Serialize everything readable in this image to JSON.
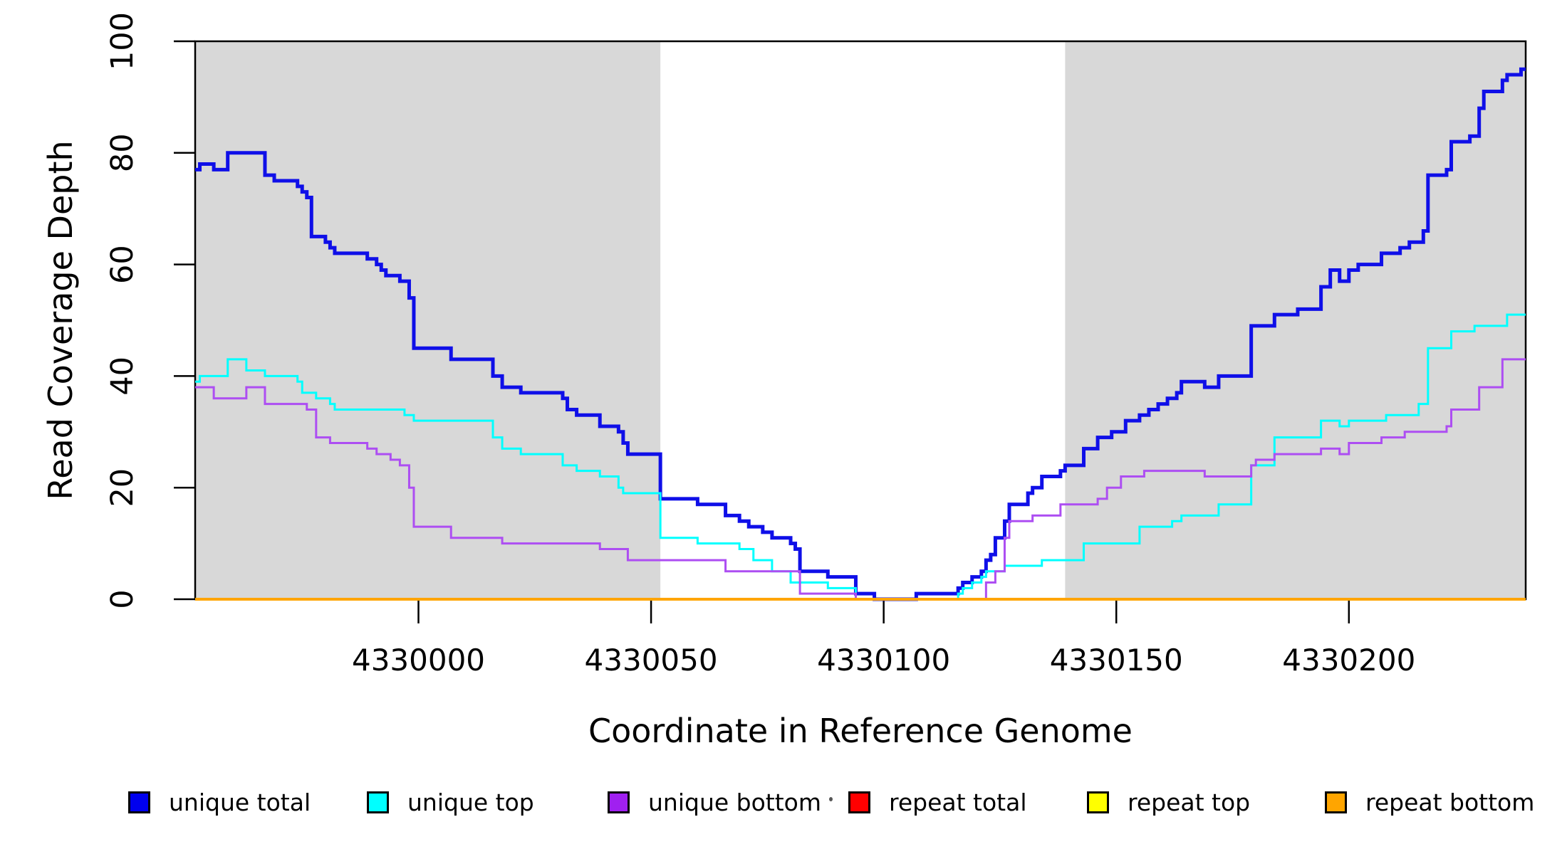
{
  "chart_data": {
    "type": "line",
    "subtype": "step",
    "title": "",
    "xlabel": "Coordinate in Reference Genome",
    "ylabel": "Read Coverage Depth",
    "xlim": [
      4329952,
      4330238
    ],
    "ylim": [
      0,
      100
    ],
    "x_ticks": [
      4330000,
      4330050,
      4330100,
      4330150,
      4330200
    ],
    "y_ticks": [
      0,
      20,
      40,
      60,
      80,
      100
    ],
    "grid": false,
    "legend_position": "bottom",
    "plot_background": "#ffffff",
    "shaded_bands": [
      {
        "from": 4329952,
        "to": 4330052,
        "color": "#d8d8d8"
      },
      {
        "from": 4330139,
        "to": 4330238,
        "color": "#d8d8d8"
      }
    ],
    "series": [
      {
        "name": "unique total",
        "color": "#0f0fe8",
        "line_width": 5,
        "points": [
          [
            4329952,
            77
          ],
          [
            4329953,
            78
          ],
          [
            4329956,
            77
          ],
          [
            4329959,
            80
          ],
          [
            4329967,
            76
          ],
          [
            4329969,
            75
          ],
          [
            4329974,
            74
          ],
          [
            4329975,
            73
          ],
          [
            4329976,
            72
          ],
          [
            4329977,
            65
          ],
          [
            4329980,
            64
          ],
          [
            4329981,
            63
          ],
          [
            4329982,
            62
          ],
          [
            4329989,
            61
          ],
          [
            4329991,
            60
          ],
          [
            4329992,
            59
          ],
          [
            4329993,
            58
          ],
          [
            4329996,
            57
          ],
          [
            4329998,
            54
          ],
          [
            4329999,
            45
          ],
          [
            4330007,
            43
          ],
          [
            4330016,
            40
          ],
          [
            4330018,
            38
          ],
          [
            4330022,
            37
          ],
          [
            4330031,
            36
          ],
          [
            4330032,
            34
          ],
          [
            4330034,
            33
          ],
          [
            4330039,
            31
          ],
          [
            4330043,
            30
          ],
          [
            4330044,
            28
          ],
          [
            4330045,
            26
          ],
          [
            4330052,
            18
          ],
          [
            4330060,
            17
          ],
          [
            4330066,
            15
          ],
          [
            4330069,
            14
          ],
          [
            4330071,
            13
          ],
          [
            4330074,
            12
          ],
          [
            4330076,
            11
          ],
          [
            4330080,
            10
          ],
          [
            4330081,
            9
          ],
          [
            4330082,
            5
          ],
          [
            4330088,
            4
          ],
          [
            4330094,
            1
          ],
          [
            4330098,
            0
          ],
          [
            4330107,
            1
          ],
          [
            4330116,
            2
          ],
          [
            4330117,
            3
          ],
          [
            4330119,
            4
          ],
          [
            4330121,
            5
          ],
          [
            4330122,
            7
          ],
          [
            4330123,
            8
          ],
          [
            4330124,
            11
          ],
          [
            4330126,
            14
          ],
          [
            4330127,
            17
          ],
          [
            4330131,
            19
          ],
          [
            4330132,
            20
          ],
          [
            4330134,
            22
          ],
          [
            4330138,
            23
          ],
          [
            4330139,
            24
          ],
          [
            4330143,
            27
          ],
          [
            4330146,
            29
          ],
          [
            4330149,
            30
          ],
          [
            4330152,
            32
          ],
          [
            4330155,
            33
          ],
          [
            4330157,
            34
          ],
          [
            4330159,
            35
          ],
          [
            4330161,
            36
          ],
          [
            4330163,
            37
          ],
          [
            4330164,
            39
          ],
          [
            4330169,
            38
          ],
          [
            4330172,
            40
          ],
          [
            4330179,
            49
          ],
          [
            4330184,
            51
          ],
          [
            4330189,
            52
          ],
          [
            4330194,
            56
          ],
          [
            4330196,
            59
          ],
          [
            4330198,
            57
          ],
          [
            4330200,
            59
          ],
          [
            4330202,
            60
          ],
          [
            4330207,
            62
          ],
          [
            4330211,
            63
          ],
          [
            4330213,
            64
          ],
          [
            4330216,
            66
          ],
          [
            4330217,
            76
          ],
          [
            4330221,
            77
          ],
          [
            4330222,
            82
          ],
          [
            4330226,
            83
          ],
          [
            4330228,
            88
          ],
          [
            4330229,
            91
          ],
          [
            4330233,
            93
          ],
          [
            4330234,
            94
          ],
          [
            4330237,
            95
          ]
        ]
      },
      {
        "name": "unique top",
        "color": "#00ffff",
        "line_width": 3,
        "points": [
          [
            4329952,
            39
          ],
          [
            4329953,
            40
          ],
          [
            4329959,
            43
          ],
          [
            4329963,
            41
          ],
          [
            4329967,
            40
          ],
          [
            4329974,
            39
          ],
          [
            4329975,
            37
          ],
          [
            4329978,
            36
          ],
          [
            4329981,
            35
          ],
          [
            4329982,
            34
          ],
          [
            4329997,
            33
          ],
          [
            4329999,
            32
          ],
          [
            4330016,
            29
          ],
          [
            4330018,
            27
          ],
          [
            4330022,
            26
          ],
          [
            4330031,
            24
          ],
          [
            4330034,
            23
          ],
          [
            4330039,
            22
          ],
          [
            4330043,
            20
          ],
          [
            4330044,
            19
          ],
          [
            4330052,
            11
          ],
          [
            4330060,
            10
          ],
          [
            4330069,
            9
          ],
          [
            4330072,
            7
          ],
          [
            4330076,
            5
          ],
          [
            4330080,
            3
          ],
          [
            4330088,
            2
          ],
          [
            4330094,
            0
          ],
          [
            4330116,
            1
          ],
          [
            4330117,
            2
          ],
          [
            4330119,
            3
          ],
          [
            4330121,
            4
          ],
          [
            4330122,
            5
          ],
          [
            4330126,
            6
          ],
          [
            4330134,
            7
          ],
          [
            4330143,
            10
          ],
          [
            4330155,
            13
          ],
          [
            4330162,
            14
          ],
          [
            4330164,
            15
          ],
          [
            4330172,
            17
          ],
          [
            4330179,
            24
          ],
          [
            4330184,
            29
          ],
          [
            4330194,
            32
          ],
          [
            4330198,
            31
          ],
          [
            4330200,
            32
          ],
          [
            4330208,
            33
          ],
          [
            4330215,
            35
          ],
          [
            4330217,
            45
          ],
          [
            4330222,
            48
          ],
          [
            4330227,
            49
          ],
          [
            4330234,
            51
          ]
        ]
      },
      {
        "name": "unique bottom",
        "color": "#ad4ef2",
        "line_width": 3,
        "points": [
          [
            4329952,
            38
          ],
          [
            4329956,
            36
          ],
          [
            4329963,
            38
          ],
          [
            4329967,
            35
          ],
          [
            4329976,
            34
          ],
          [
            4329978,
            29
          ],
          [
            4329981,
            28
          ],
          [
            4329989,
            27
          ],
          [
            4329991,
            26
          ],
          [
            4329994,
            25
          ],
          [
            4329996,
            24
          ],
          [
            4329998,
            20
          ],
          [
            4329999,
            13
          ],
          [
            4330007,
            11
          ],
          [
            4330018,
            10
          ],
          [
            4330039,
            9
          ],
          [
            4330045,
            7
          ],
          [
            4330066,
            5
          ],
          [
            4330082,
            1
          ],
          [
            4330094,
            0
          ],
          [
            4330122,
            3
          ],
          [
            4330124,
            5
          ],
          [
            4330126,
            11
          ],
          [
            4330127,
            14
          ],
          [
            4330132,
            15
          ],
          [
            4330138,
            17
          ],
          [
            4330146,
            18
          ],
          [
            4330148,
            20
          ],
          [
            4330151,
            22
          ],
          [
            4330156,
            23
          ],
          [
            4330169,
            22
          ],
          [
            4330179,
            24
          ],
          [
            4330180,
            25
          ],
          [
            4330184,
            26
          ],
          [
            4330194,
            27
          ],
          [
            4330198,
            26
          ],
          [
            4330200,
            28
          ],
          [
            4330207,
            29
          ],
          [
            4330212,
            30
          ],
          [
            4330221,
            31
          ],
          [
            4330222,
            34
          ],
          [
            4330228,
            38
          ],
          [
            4330233,
            43
          ]
        ]
      },
      {
        "name": "repeat total",
        "color": "#ff0000",
        "line_width": 3,
        "points": [
          [
            4329952,
            0
          ]
        ]
      },
      {
        "name": "repeat top",
        "color": "#ffff00",
        "line_width": 3,
        "points": [
          [
            4329952,
            0
          ]
        ]
      },
      {
        "name": "repeat bottom",
        "color": "#ffa500",
        "line_width": 4,
        "points": [
          [
            4329952,
            0
          ]
        ]
      }
    ]
  },
  "legend": {
    "items": [
      {
        "label": "unique total",
        "color": "#0000ee"
      },
      {
        "label": "unique top",
        "color": "#00ffff"
      },
      {
        "label": "unique bottom",
        "color": "#a020f0"
      },
      {
        "label": "repeat total",
        "color": "#ff0000"
      },
      {
        "label": "repeat top",
        "color": "#ffff00"
      },
      {
        "label": "repeat bottom",
        "color": "#ffa500"
      }
    ]
  }
}
